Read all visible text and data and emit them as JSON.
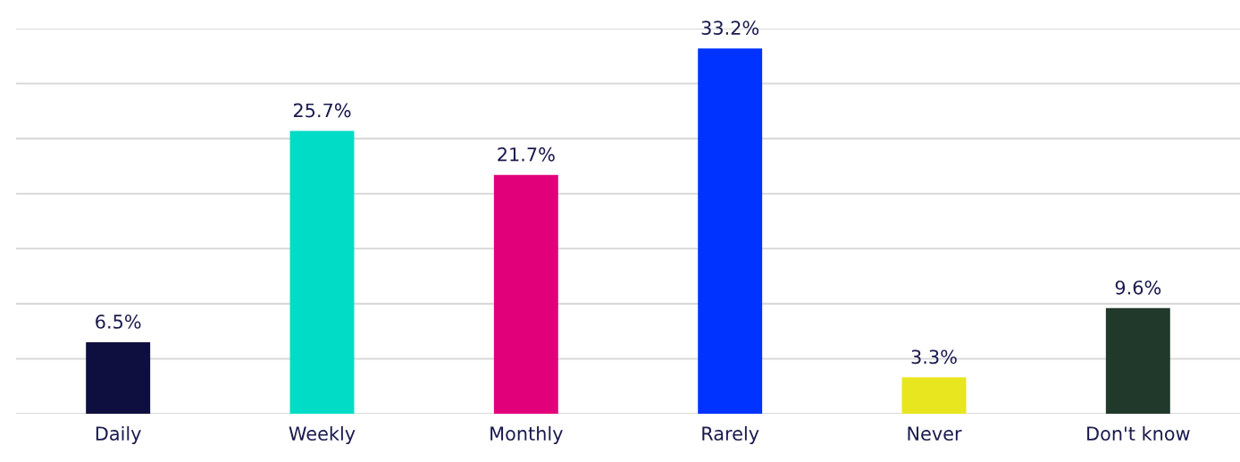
{
  "chart_data": {
    "type": "bar",
    "categories": [
      "Daily",
      "Weekly",
      "Monthly",
      "Rarely",
      "Never",
      "Don't know"
    ],
    "values": [
      6.5,
      25.7,
      21.7,
      33.2,
      3.3,
      9.6
    ],
    "colors": [
      "#0f0f3f",
      "#00dcc5",
      "#e2007a",
      "#0033ff",
      "#e8e61e",
      "#21392a"
    ],
    "value_labels": [
      "6.5%",
      "25.7%",
      "21.7%",
      "33.2%",
      "3.3%",
      "9.6%"
    ],
    "ylim": [
      0,
      35
    ],
    "yticks": [
      {
        "value": 0,
        "label": null
      },
      {
        "value": 5,
        "label": null
      },
      {
        "value": 10,
        "label": null
      },
      {
        "value": 15,
        "label": null
      },
      {
        "value": 20,
        "label": null
      },
      {
        "value": 25,
        "label": null
      },
      {
        "value": 30,
        "label": null
      },
      {
        "value": 35,
        "label": null
      }
    ],
    "grid": "y",
    "tick_labels": "x"
  }
}
